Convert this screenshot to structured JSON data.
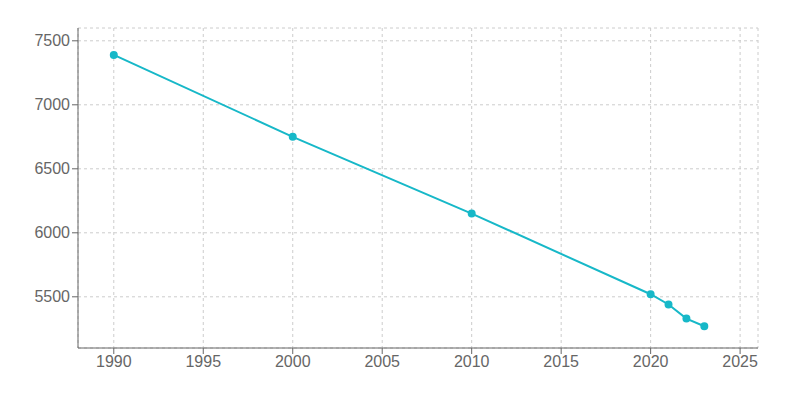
{
  "chart_data": {
    "type": "line",
    "x": [
      1990,
      2000,
      2010,
      2020,
      2021,
      2022,
      2023
    ],
    "values": [
      7390,
      6750,
      6150,
      5520,
      5440,
      5330,
      5270
    ],
    "color": "#17b8c8",
    "marker": "circle",
    "xlim": [
      1988,
      2026
    ],
    "ylim": [
      5100,
      7600
    ],
    "xticks": [
      1990,
      1995,
      2000,
      2005,
      2010,
      2015,
      2020,
      2025
    ],
    "yticks": [
      5500,
      6000,
      6500,
      7000,
      7500
    ],
    "grid": true
  }
}
